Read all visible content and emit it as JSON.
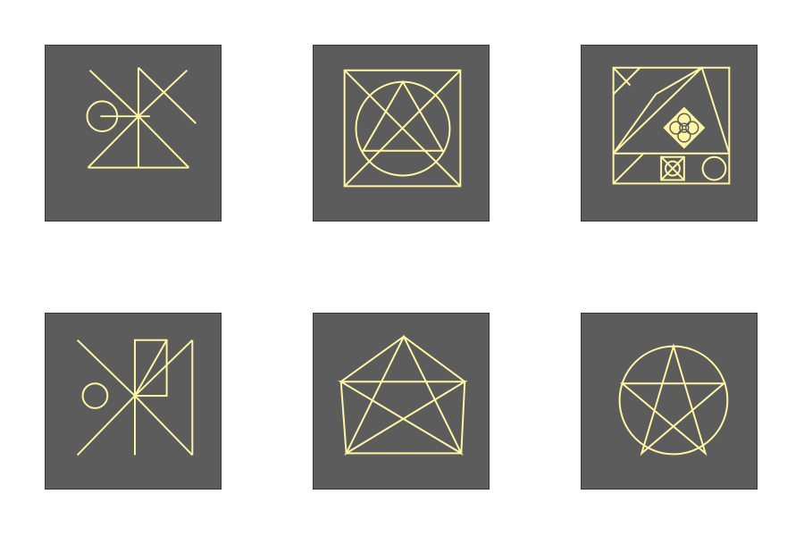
{
  "colors": {
    "page_background": "#ffffff",
    "tile_background": "#5c5c5c",
    "glyph_stroke": "#fff6a6"
  },
  "tiles": [
    {
      "icon": "sigil-circle-cross-triangle-icon"
    },
    {
      "icon": "square-circle-triangle-sigil-icon"
    },
    {
      "icon": "square-diamond-flower-sigil-icon"
    },
    {
      "icon": "rectangle-circle-cross-sigil-icon"
    },
    {
      "icon": "pentagon-pentagram-icon"
    },
    {
      "icon": "circled-pentagram-icon"
    }
  ]
}
